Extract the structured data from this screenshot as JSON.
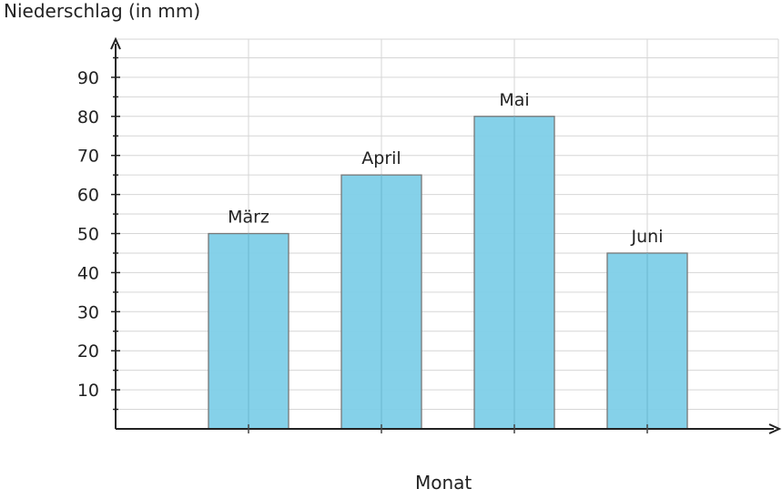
{
  "chart_data": {
    "type": "bar",
    "categories": [
      "März",
      "April",
      "Mai",
      "Juni"
    ],
    "values": [
      50,
      65,
      80,
      45
    ],
    "title": "",
    "ylabel": "Niederschlag (in mm)",
    "xlabel": "Monat",
    "ylim": [
      0,
      100
    ],
    "yticks": [
      10,
      20,
      30,
      40,
      50,
      60,
      70,
      80,
      90
    ],
    "grid": true,
    "bar_color": "#7ecfe8",
    "bar_edge_color": "#777777"
  }
}
